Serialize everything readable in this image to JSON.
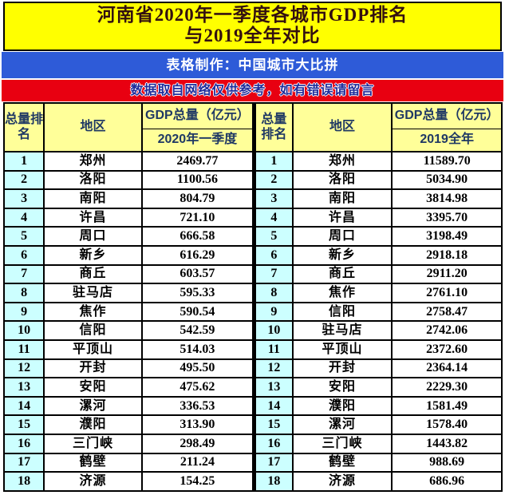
{
  "page": {
    "title_line1": "河南省2020年一季度各城市GDP排名",
    "title_line2": "与2019全年对比",
    "maker_label": "表格制作：中国城市大比拼",
    "notice_label": "数据取自网络仅供参考，如有错误请留言",
    "colors": {
      "banner_yellow": "#FFFF00",
      "banner_blue": "#2E5BD8",
      "banner_red": "#E80011",
      "header_cell_bg": "#FFFF99",
      "rank_cell_bg": "#CCFFFF",
      "header_text": "#1F3864",
      "notice_text": "#1F2D9B"
    }
  },
  "table": {
    "headers": {
      "rank_left": "总量排名",
      "region_left": "地区",
      "gdp_left": "GDP总量（亿元）",
      "sub_left": "2020年一季度",
      "rank_right": "总量排名",
      "region_right": "地区",
      "gdp_right": "GDP总量（亿元）",
      "sub_right": "2019全年"
    },
    "rows": [
      {
        "left": {
          "rank": "1",
          "city": "郑州",
          "gdp": "2469.77"
        },
        "right": {
          "rank": "1",
          "city": "郑州",
          "gdp": "11589.70"
        }
      },
      {
        "left": {
          "rank": "2",
          "city": "洛阳",
          "gdp": "1100.56"
        },
        "right": {
          "rank": "2",
          "city": "洛阳",
          "gdp": "5034.90"
        }
      },
      {
        "left": {
          "rank": "3",
          "city": "南阳",
          "gdp": "804.79"
        },
        "right": {
          "rank": "3",
          "city": "南阳",
          "gdp": "3814.98"
        }
      },
      {
        "left": {
          "rank": "4",
          "city": "许昌",
          "gdp": "721.10"
        },
        "right": {
          "rank": "4",
          "city": "许昌",
          "gdp": "3395.70"
        }
      },
      {
        "left": {
          "rank": "5",
          "city": "周口",
          "gdp": "666.58"
        },
        "right": {
          "rank": "5",
          "city": "周口",
          "gdp": "3198.49"
        }
      },
      {
        "left": {
          "rank": "6",
          "city": "新乡",
          "gdp": "616.29"
        },
        "right": {
          "rank": "6",
          "city": "新乡",
          "gdp": "2918.18"
        }
      },
      {
        "left": {
          "rank": "7",
          "city": "商丘",
          "gdp": "603.57"
        },
        "right": {
          "rank": "7",
          "city": "商丘",
          "gdp": "2911.20"
        }
      },
      {
        "left": {
          "rank": "8",
          "city": "驻马店",
          "gdp": "595.33"
        },
        "right": {
          "rank": "8",
          "city": "焦作",
          "gdp": "2761.10"
        }
      },
      {
        "left": {
          "rank": "9",
          "city": "焦作",
          "gdp": "590.54"
        },
        "right": {
          "rank": "9",
          "city": "信阳",
          "gdp": "2758.47"
        }
      },
      {
        "left": {
          "rank": "10",
          "city": "信阳",
          "gdp": "542.59"
        },
        "right": {
          "rank": "10",
          "city": "驻马店",
          "gdp": "2742.06"
        }
      },
      {
        "left": {
          "rank": "11",
          "city": "平顶山",
          "gdp": "514.03"
        },
        "right": {
          "rank": "11",
          "city": "平顶山",
          "gdp": "2372.60"
        }
      },
      {
        "left": {
          "rank": "12",
          "city": "开封",
          "gdp": "495.50"
        },
        "right": {
          "rank": "12",
          "city": "开封",
          "gdp": "2364.14"
        }
      },
      {
        "left": {
          "rank": "13",
          "city": "安阳",
          "gdp": "475.62"
        },
        "right": {
          "rank": "13",
          "city": "安阳",
          "gdp": "2229.30"
        }
      },
      {
        "left": {
          "rank": "14",
          "city": "漯河",
          "gdp": "336.53"
        },
        "right": {
          "rank": "14",
          "city": "濮阳",
          "gdp": "1581.49"
        }
      },
      {
        "left": {
          "rank": "15",
          "city": "濮阳",
          "gdp": "313.90"
        },
        "right": {
          "rank": "15",
          "city": "漯河",
          "gdp": "1578.40"
        }
      },
      {
        "left": {
          "rank": "16",
          "city": "三门峡",
          "gdp": "298.49"
        },
        "right": {
          "rank": "16",
          "city": "三门峡",
          "gdp": "1443.82"
        }
      },
      {
        "left": {
          "rank": "17",
          "city": "鹤壁",
          "gdp": "211.24"
        },
        "right": {
          "rank": "17",
          "city": "鹤壁",
          "gdp": "988.69"
        }
      },
      {
        "left": {
          "rank": "18",
          "city": "济源",
          "gdp": "154.25"
        },
        "right": {
          "rank": "18",
          "city": "济源",
          "gdp": "686.96"
        }
      }
    ]
  },
  "chart_data": {
    "type": "table",
    "title": "河南省2020年一季度各城市GDP排名与2019全年对比",
    "unit": "亿元",
    "series": [
      {
        "name": "2020年一季度 GDP总量（亿元）",
        "categories": [
          "郑州",
          "洛阳",
          "南阳",
          "许昌",
          "周口",
          "新乡",
          "商丘",
          "驻马店",
          "焦作",
          "信阳",
          "平顶山",
          "开封",
          "安阳",
          "漯河",
          "濮阳",
          "三门峡",
          "鹤壁",
          "济源"
        ],
        "values": [
          2469.77,
          1100.56,
          804.79,
          721.1,
          666.58,
          616.29,
          603.57,
          595.33,
          590.54,
          542.59,
          514.03,
          495.5,
          475.62,
          336.53,
          313.9,
          298.49,
          211.24,
          154.25
        ]
      },
      {
        "name": "2019全年 GDP总量（亿元）",
        "categories": [
          "郑州",
          "洛阳",
          "南阳",
          "许昌",
          "周口",
          "新乡",
          "商丘",
          "焦作",
          "信阳",
          "驻马店",
          "平顶山",
          "开封",
          "安阳",
          "濮阳",
          "漯河",
          "三门峡",
          "鹤壁",
          "济源"
        ],
        "values": [
          11589.7,
          5034.9,
          3814.98,
          3395.7,
          3198.49,
          2918.18,
          2911.2,
          2761.1,
          2758.47,
          2742.06,
          2372.6,
          2364.14,
          2229.3,
          1581.49,
          1578.4,
          1443.82,
          988.69,
          686.96
        ]
      }
    ]
  }
}
